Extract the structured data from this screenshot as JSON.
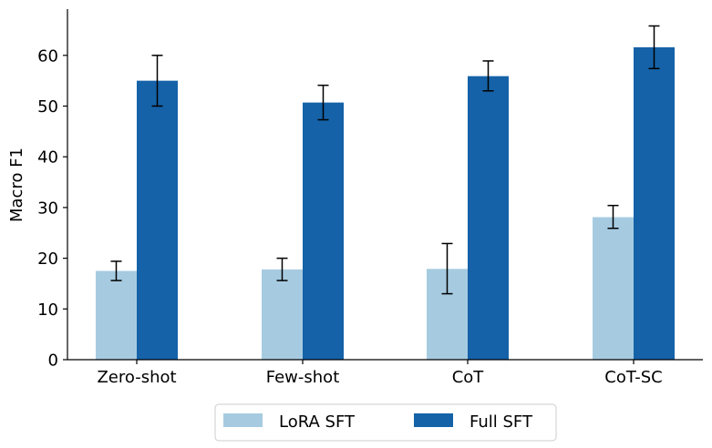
{
  "chart_data": {
    "type": "bar",
    "title": "",
    "xlabel": "",
    "ylabel": "Macro F1",
    "ylim": [
      0,
      68
    ],
    "yticks": [
      0,
      10,
      20,
      30,
      40,
      50,
      60
    ],
    "categories": [
      "Zero-shot",
      "Few-shot",
      "CoT",
      "CoT-SC"
    ],
    "series": [
      {
        "name": "LoRA SFT",
        "color": "#a6cbe1",
        "values": [
          17.5,
          17.8,
          17.9,
          28.1
        ],
        "error_low": [
          15.6,
          15.6,
          13.0,
          25.9
        ],
        "error_high": [
          19.4,
          20.0,
          22.9,
          30.4
        ]
      },
      {
        "name": "Full SFT",
        "color": "#1562a8",
        "values": [
          55.0,
          50.7,
          55.9,
          61.6
        ],
        "error_low": [
          50.0,
          47.3,
          53.0,
          57.4
        ],
        "error_high": [
          60.0,
          54.1,
          58.9,
          65.8
        ]
      }
    ],
    "legend": {
      "position": "bottom",
      "entries": [
        "LoRA SFT",
        "Full SFT"
      ]
    },
    "grid": false
  }
}
